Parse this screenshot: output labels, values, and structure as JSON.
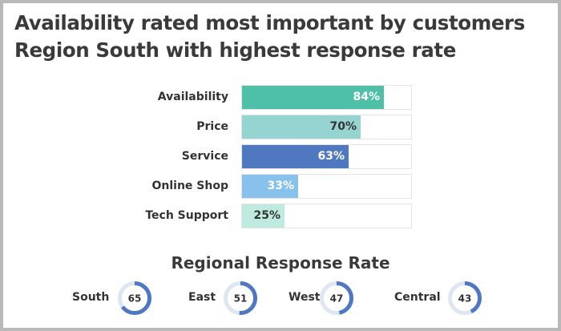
{
  "colors": {
    "availability": "#4fc0a8",
    "price": "#96d4d2",
    "service": "#5078c0",
    "online_shop": "#88c2ec",
    "tech_support": "#bfeadf",
    "donut_fill": "#4f78c4",
    "donut_track": "#dde6f1"
  },
  "chart_data": [
    {
      "type": "bar",
      "orientation": "horizontal",
      "title": "Availability rated most important by customers",
      "subtitle": "Region South with highest response rate",
      "categories": [
        "Availability",
        "Price",
        "Service",
        "Online Shop",
        "Tech Support"
      ],
      "values": [
        84,
        70,
        63,
        33,
        25
      ],
      "value_labels": [
        "84%",
        "70%",
        "63%",
        "33%",
        "25%"
      ],
      "unit": "%",
      "xlim": [
        0,
        100
      ],
      "grid": false,
      "legend": "none"
    },
    {
      "type": "pie",
      "variant": "donut",
      "title": "Regional Response Rate",
      "categories": [
        "South",
        "East",
        "West",
        "Central"
      ],
      "values": [
        65,
        51,
        47,
        43
      ],
      "max": 100
    }
  ]
}
